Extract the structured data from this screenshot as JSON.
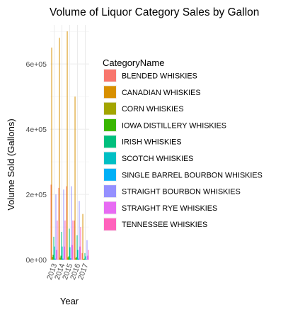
{
  "chart_data": {
    "type": "bar",
    "title": "Volume of Liquor Category Sales by Gallon",
    "xlabel": "Year",
    "ylabel": "Volume Sold (Gallons)",
    "categories": [
      "2013",
      "2014",
      "2015",
      "2016",
      "2017"
    ],
    "ylim": [
      0,
      720000
    ],
    "yticks": [
      0,
      200000,
      400000,
      600000
    ],
    "ytick_labels": [
      "0e+00",
      "2e+05",
      "4e+05",
      "6e+05"
    ],
    "legend_title": "CategoryName",
    "legend_position": "right",
    "grid": true,
    "series": [
      {
        "name": "BLENDED WHISKIES",
        "color": "#F8766D",
        "values": [
          230000,
          220000,
          225000,
          120000,
          20000
        ]
      },
      {
        "name": "CANADIAN WHISKIES",
        "color": "#D89000",
        "values": [
          650000,
          680000,
          700000,
          500000,
          140000
        ]
      },
      {
        "name": "CORN WHISKIES",
        "color": "#A3A500",
        "values": [
          8000,
          6000,
          7000,
          5000,
          2000
        ]
      },
      {
        "name": "IOWA DISTILLERY WHISKIES",
        "color": "#39B600",
        "values": [
          15000,
          12000,
          10000,
          8000,
          3000
        ]
      },
      {
        "name": "IRISH WHISKIES",
        "color": "#00BF7D",
        "values": [
          70000,
          85000,
          95000,
          75000,
          20000
        ]
      },
      {
        "name": "SCOTCH WHISKIES",
        "color": "#00BFC4",
        "values": [
          40000,
          40000,
          38000,
          30000,
          10000
        ]
      },
      {
        "name": "SINGLE BARREL BOURBON WHISKIES",
        "color": "#00B0F6",
        "values": [
          3000,
          3000,
          4000,
          3000,
          1000
        ]
      },
      {
        "name": "STRAIGHT BOURBON WHISKIES",
        "color": "#9590FF",
        "values": [
          200000,
          215000,
          225000,
          180000,
          60000
        ]
      },
      {
        "name": "STRAIGHT RYE WHISKIES",
        "color": "#E76BF3",
        "values": [
          30000,
          40000,
          45000,
          40000,
          12000
        ]
      },
      {
        "name": "TENNESSEE WHISKIES",
        "color": "#FF62BC",
        "values": [
          120000,
          120000,
          120000,
          100000,
          30000
        ]
      }
    ]
  }
}
